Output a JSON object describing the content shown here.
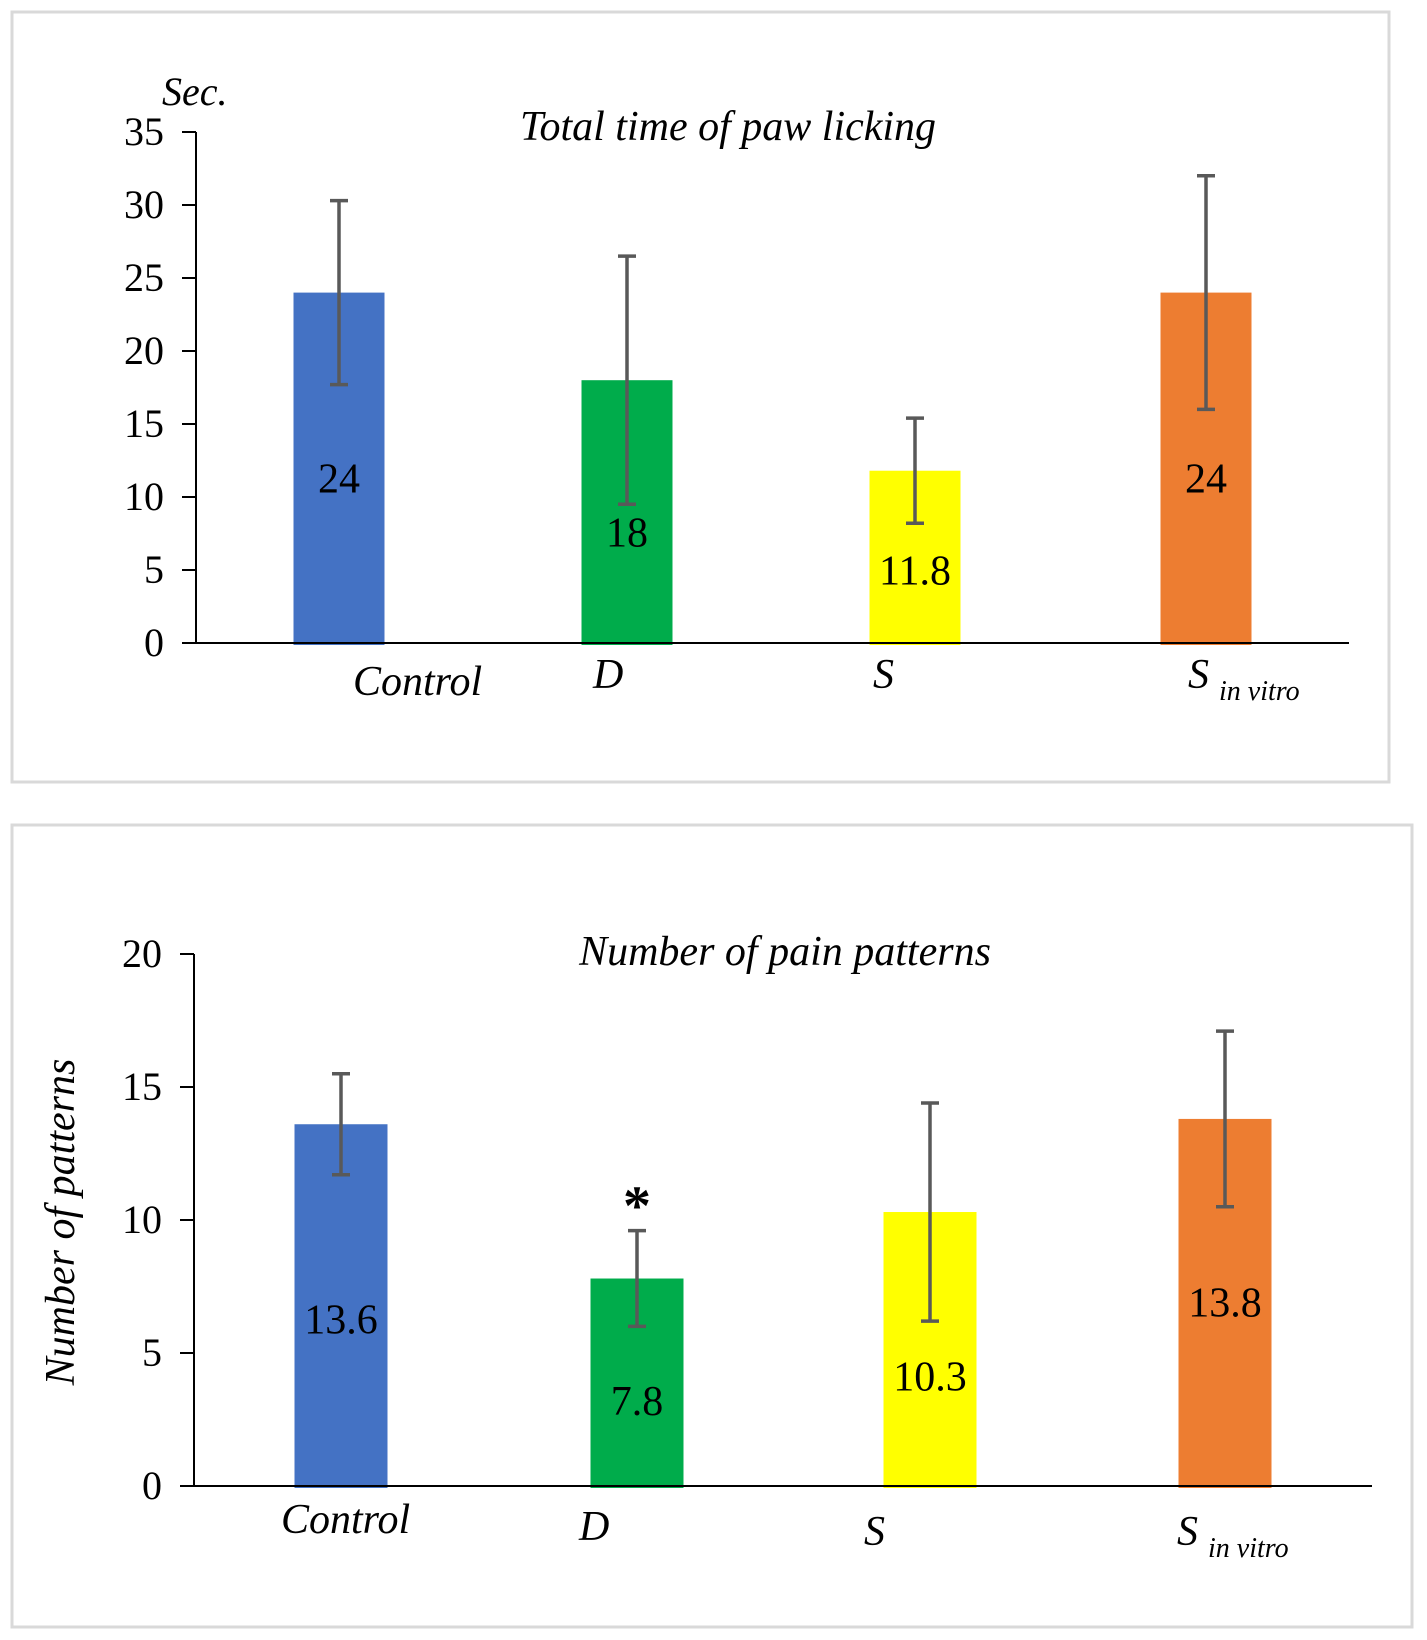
{
  "chart_data": [
    {
      "type": "bar",
      "title": "Total time of paw licking",
      "xlabel": "",
      "ylabel": "Sec.",
      "ylim": [
        0,
        35
      ],
      "yticks": [
        0,
        5,
        10,
        15,
        20,
        25,
        30,
        35
      ],
      "grid": false,
      "legend": "none",
      "categories": [
        {
          "main": "Control",
          "sub": ""
        },
        {
          "main": "D",
          "sub": ""
        },
        {
          "main": "S",
          "sub": ""
        },
        {
          "main": "S",
          "sub": "in vitro"
        }
      ],
      "values": [
        24,
        18,
        11.8,
        24
      ],
      "data_labels": [
        "24",
        "18",
        "11.8",
        "24"
      ],
      "error": [
        6.3,
        8.5,
        3.6,
        8.0
      ],
      "colors": [
        "#4472c4",
        "#00ac4b",
        "#ffff00",
        "#ed7d31"
      ],
      "annotations": []
    },
    {
      "type": "bar",
      "title": "Number of pain patterns",
      "xlabel": "",
      "ylabel": "Number of patterns",
      "ylim": [
        0,
        20
      ],
      "yticks": [
        0,
        5,
        10,
        15,
        20
      ],
      "grid": false,
      "legend": "none",
      "categories": [
        {
          "main": "Control",
          "sub": ""
        },
        {
          "main": "D",
          "sub": ""
        },
        {
          "main": "S",
          "sub": ""
        },
        {
          "main": "S",
          "sub": "in vitro"
        }
      ],
      "values": [
        13.6,
        7.8,
        10.3,
        13.8
      ],
      "data_labels": [
        "13.6",
        "7.8",
        "10.3",
        "13.8"
      ],
      "error": [
        1.9,
        1.8,
        4.1,
        3.3
      ],
      "colors": [
        "#4472c4",
        "#00ac4b",
        "#ffff00",
        "#ed7d31"
      ],
      "annotations": [
        {
          "category_index": 1,
          "text": "*"
        }
      ]
    }
  ]
}
